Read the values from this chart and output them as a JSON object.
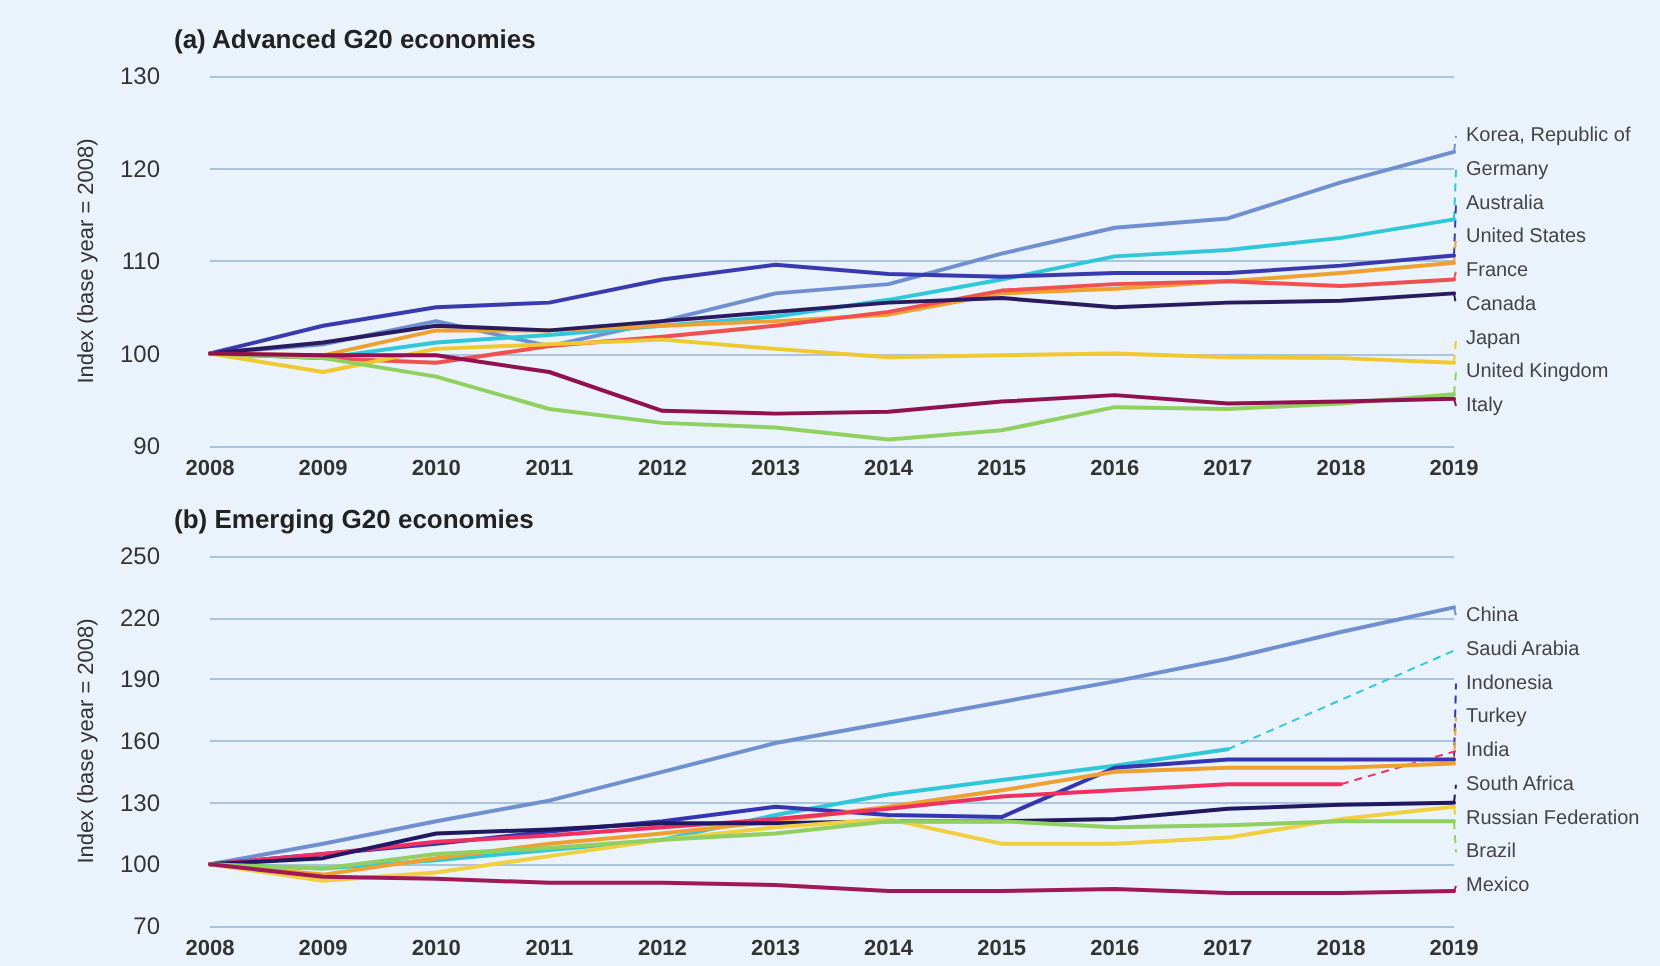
{
  "chart_data": [
    {
      "type": "line",
      "title": "(a) Advanced G20 economies",
      "ylabel": "Index (base year = 2008)",
      "categories": [
        "2008",
        "2009",
        "2010",
        "2011",
        "2012",
        "2013",
        "2014",
        "2015",
        "2016",
        "2017",
        "2018",
        "2019"
      ],
      "ylim": [
        90,
        130
      ],
      "yticks": [
        90,
        100,
        110,
        120,
        130
      ],
      "grid": "y",
      "marker": "none",
      "line_style": "solid",
      "legend": "right",
      "series": [
        {
          "name": "Korea, Republic of",
          "color": "#6f8fd0",
          "values": [
            100,
            101,
            103.5,
            100.8,
            103.5,
            106.5,
            107.5,
            110.8,
            113.6,
            114.6,
            118.5,
            121.8
          ]
        },
        {
          "name": "Germany",
          "color": "#30c8d8",
          "values": [
            100,
            99.5,
            101.2,
            102,
            103,
            104,
            105.8,
            108,
            110.5,
            111.2,
            112.5,
            114.5
          ]
        },
        {
          "name": "Australia",
          "color": "#3a3ab0",
          "values": [
            100,
            103,
            105,
            105.5,
            108,
            109.6,
            108.6,
            108.3,
            108.7,
            108.7,
            109.5,
            110.6
          ]
        },
        {
          "name": "United States",
          "color": "#f0a030",
          "values": [
            100,
            99.8,
            102.5,
            102.5,
            103,
            103.5,
            104.2,
            106.5,
            107,
            107.8,
            108.7,
            109.8
          ]
        },
        {
          "name": "France",
          "color": "#f05050",
          "values": [
            100,
            99.5,
            99,
            100.8,
            101.8,
            103,
            104.5,
            106.8,
            107.5,
            107.8,
            107.3,
            108
          ]
        },
        {
          "name": "Canada",
          "color": "#2a1a60",
          "values": [
            100,
            101.2,
            103,
            102.5,
            103.5,
            104.5,
            105.5,
            106,
            105,
            105.5,
            105.7,
            106.5
          ]
        },
        {
          "name": "Japan",
          "color": "#f0c830",
          "values": [
            100,
            98,
            100.5,
            101,
            101.5,
            100.5,
            99.6,
            99.8,
            100,
            99.6,
            99.5,
            99
          ]
        },
        {
          "name": "United Kingdom",
          "color": "#90d060",
          "values": [
            100,
            99.5,
            97.5,
            94,
            92.5,
            92,
            90.7,
            91.7,
            94.2,
            94,
            94.6,
            95.6
          ]
        },
        {
          "name": "Italy",
          "color": "#901050",
          "values": [
            100,
            99.8,
            99.8,
            98,
            93.8,
            93.5,
            93.7,
            94.8,
            95.5,
            94.6,
            94.8,
            95.1
          ]
        }
      ]
    },
    {
      "type": "line",
      "title": "(b) Emerging G20 economies",
      "ylabel": "Index (base year = 2008)",
      "categories": [
        "2008",
        "2009",
        "2010",
        "2011",
        "2012",
        "2013",
        "2014",
        "2015",
        "2016",
        "2017",
        "2018",
        "2019"
      ],
      "ylim": [
        70,
        250
      ],
      "yticks": [
        70,
        100,
        130,
        160,
        190,
        220,
        250
      ],
      "grid": "y",
      "marker": "none",
      "line_style": "solid",
      "legend": "right",
      "series": [
        {
          "name": "China",
          "color": "#6f8fd0",
          "values": [
            100,
            110,
            121,
            131,
            145,
            159,
            169,
            179,
            189,
            200,
            213,
            225
          ]
        },
        {
          "name": "Saudi Arabia",
          "color": "#30c8d8",
          "values": [
            100,
            98,
            102,
            107,
            112,
            124,
            134,
            141,
            148,
            156,
            null,
            null
          ]
        },
        {
          "name": "Indonesia",
          "color": "#3535b0",
          "values": [
            100,
            105,
            110,
            116,
            121,
            128,
            124,
            123,
            147,
            151,
            151,
            151
          ]
        },
        {
          "name": "Turkey",
          "color": "#f0a030",
          "values": [
            100,
            95,
            103,
            110,
            115,
            121,
            128,
            136,
            145,
            147,
            147,
            149
          ]
        },
        {
          "name": "India",
          "color": "#f03060",
          "values": [
            100,
            105,
            111,
            114,
            118,
            122,
            127,
            133,
            136,
            139,
            139,
            null
          ]
        },
        {
          "name": "South Africa",
          "color": "#201860",
          "values": [
            100,
            103,
            115,
            117,
            120,
            120,
            121,
            121,
            122,
            127,
            129,
            130
          ]
        },
        {
          "name": "Russian Federation",
          "color": "#f0d040",
          "values": [
            100,
            92,
            96,
            104,
            112,
            118,
            122,
            110,
            110,
            113,
            122,
            128
          ]
        },
        {
          "name": "Brazil",
          "color": "#90d060",
          "values": [
            100,
            98,
            105,
            108,
            112,
            115,
            121,
            121,
            118,
            119,
            121,
            121
          ]
        },
        {
          "name": "Mexico",
          "color": "#a01858",
          "values": [
            100,
            94,
            93,
            91,
            91,
            90,
            87,
            87,
            88,
            86,
            86,
            87
          ]
        }
      ]
    }
  ]
}
